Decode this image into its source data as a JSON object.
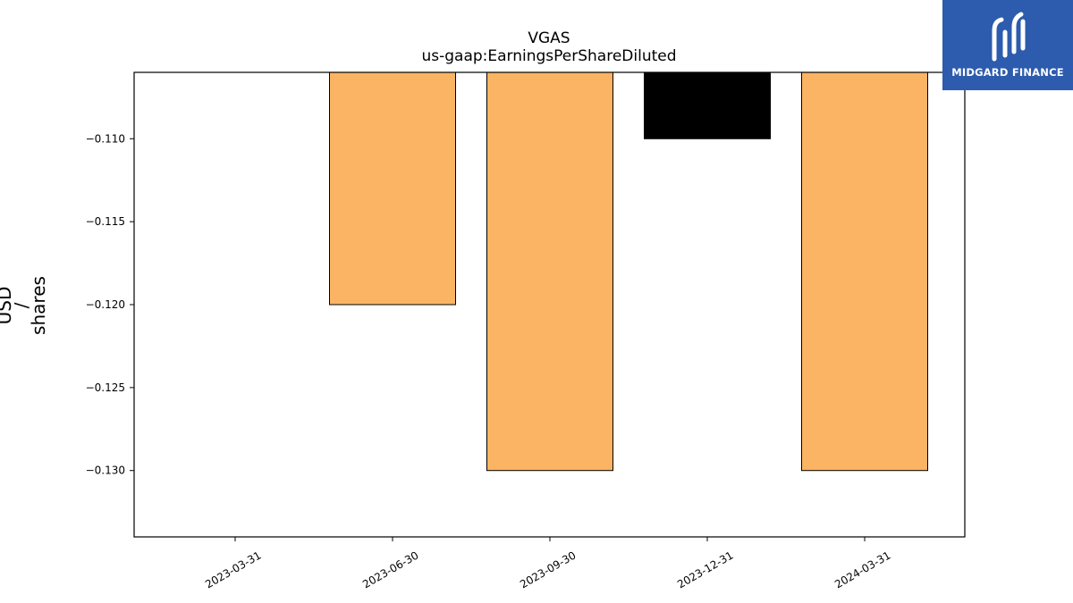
{
  "chart_data": {
    "type": "bar",
    "title": "VGAS",
    "subtitle": "us-gaap:EarningsPerShareDiluted",
    "ylabel_lines": [
      "USD",
      "/",
      "shares"
    ],
    "categories": [
      "2023-03-31",
      "2023-06-30",
      "2023-09-30",
      "2023-12-31",
      "2024-03-31"
    ],
    "values": [
      null,
      -0.12,
      -0.13,
      -0.11,
      -0.13
    ],
    "bar_colors": [
      "#fbb463",
      "#fbb463",
      "#fbb463",
      "#000000",
      "#fbb463"
    ],
    "ylim": [
      -0.134,
      -0.106
    ],
    "yticks": [
      -0.11,
      -0.115,
      -0.12,
      -0.125,
      -0.13
    ],
    "ytick_labels": [
      "−0.110",
      "−0.115",
      "−0.120",
      "−0.125",
      "−0.130"
    ],
    "grid": false
  },
  "logo": {
    "text": "MIDGARD FINANCE",
    "icon": "midgard-logo-icon",
    "background": "#2d5bad"
  }
}
